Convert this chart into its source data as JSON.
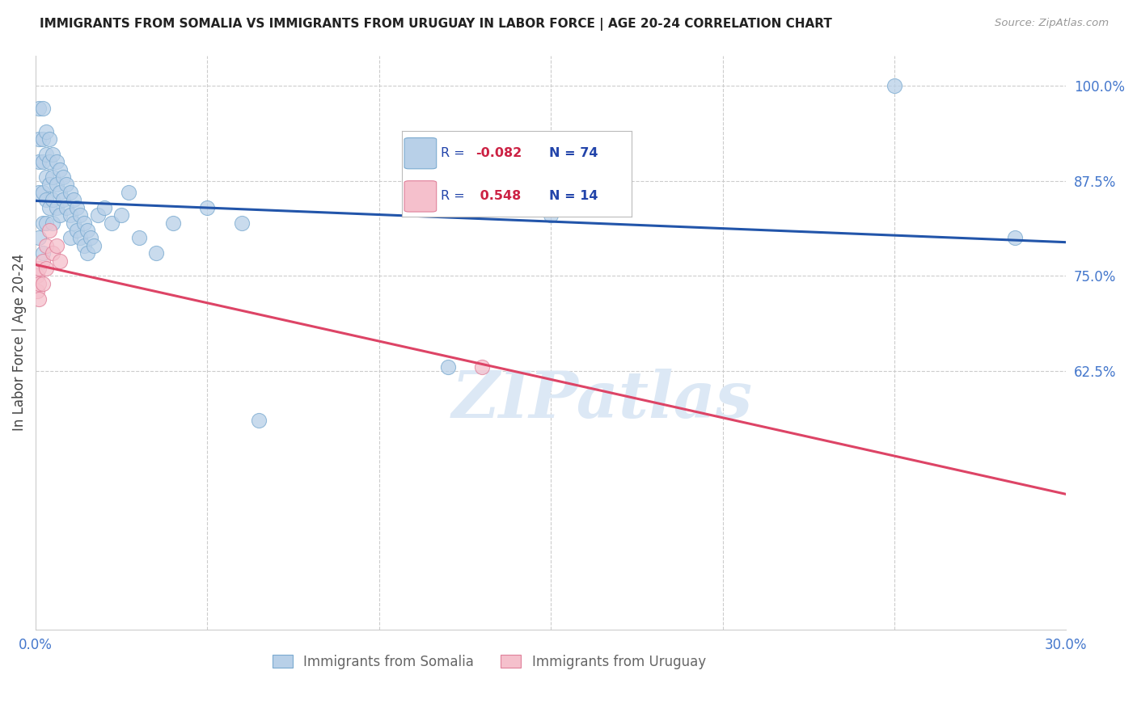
{
  "title": "IMMIGRANTS FROM SOMALIA VS IMMIGRANTS FROM URUGUAY IN LABOR FORCE | AGE 20-24 CORRELATION CHART",
  "source": "Source: ZipAtlas.com",
  "ylabel": "In Labor Force | Age 20-24",
  "xlim": [
    0.0,
    0.3
  ],
  "ylim": [
    0.285,
    1.04
  ],
  "xticks": [
    0.0,
    0.05,
    0.1,
    0.15,
    0.2,
    0.25,
    0.3
  ],
  "xticklabels": [
    "0.0%",
    "",
    "",
    "",
    "",
    "",
    "30.0%"
  ],
  "yticks": [
    0.625,
    0.75,
    0.875,
    1.0
  ],
  "yticklabels": [
    "62.5%",
    "75.0%",
    "87.5%",
    "100.0%"
  ],
  "somalia_color": "#b8d0e8",
  "somalia_edge": "#7aaad0",
  "uruguay_color": "#f5c0cc",
  "uruguay_edge": "#e0809a",
  "somalia_line_color": "#2255aa",
  "uruguay_line_color": "#dd4466",
  "watermark_text": "ZIPatlas",
  "watermark_color": "#dce8f5",
  "somalia_x": [
    0.001,
    0.001,
    0.001,
    0.001,
    0.001,
    0.002,
    0.002,
    0.002,
    0.002,
    0.002,
    0.002,
    0.003,
    0.003,
    0.003,
    0.003,
    0.003,
    0.004,
    0.004,
    0.004,
    0.004,
    0.005,
    0.005,
    0.005,
    0.005,
    0.006,
    0.006,
    0.006,
    0.007,
    0.007,
    0.007,
    0.008,
    0.008,
    0.009,
    0.009,
    0.01,
    0.01,
    0.01,
    0.011,
    0.011,
    0.012,
    0.012,
    0.013,
    0.013,
    0.014,
    0.014,
    0.015,
    0.015,
    0.016,
    0.017,
    0.018,
    0.02,
    0.022,
    0.025,
    0.027,
    0.03,
    0.035,
    0.04,
    0.05,
    0.06,
    0.065,
    0.12,
    0.15,
    0.25,
    0.285
  ],
  "somalia_y": [
    0.97,
    0.93,
    0.9,
    0.86,
    0.8,
    0.97,
    0.93,
    0.9,
    0.86,
    0.82,
    0.78,
    0.94,
    0.91,
    0.88,
    0.85,
    0.82,
    0.93,
    0.9,
    0.87,
    0.84,
    0.91,
    0.88,
    0.85,
    0.82,
    0.9,
    0.87,
    0.84,
    0.89,
    0.86,
    0.83,
    0.88,
    0.85,
    0.87,
    0.84,
    0.86,
    0.83,
    0.8,
    0.85,
    0.82,
    0.84,
    0.81,
    0.83,
    0.8,
    0.82,
    0.79,
    0.81,
    0.78,
    0.8,
    0.79,
    0.83,
    0.84,
    0.82,
    0.83,
    0.86,
    0.8,
    0.78,
    0.82,
    0.84,
    0.82,
    0.56,
    0.63,
    0.83,
    1.0,
    0.8
  ],
  "uruguay_x": [
    0.0005,
    0.0005,
    0.001,
    0.001,
    0.001,
    0.002,
    0.002,
    0.003,
    0.003,
    0.004,
    0.005,
    0.006,
    0.007,
    0.13
  ],
  "uruguay_y": [
    0.75,
    0.73,
    0.76,
    0.74,
    0.72,
    0.77,
    0.74,
    0.79,
    0.76,
    0.81,
    0.78,
    0.79,
    0.77,
    0.63
  ],
  "legend_somalia_color": "#b8d0e8",
  "legend_somalia_edge": "#7aaad0",
  "legend_uruguay_color": "#f5c0cc",
  "legend_uruguay_edge": "#e0809a",
  "legend_text_color": "#2244aa",
  "bottom_legend_color": "#666666",
  "tick_color": "#4477cc"
}
